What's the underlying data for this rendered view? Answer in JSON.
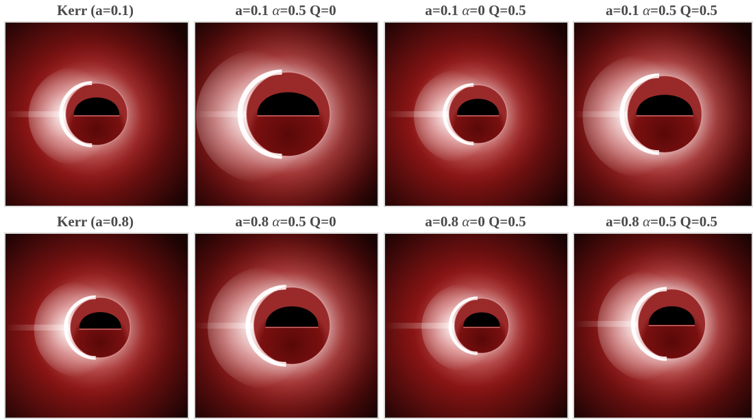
{
  "figure": {
    "rows": [
      {
        "panels": [
          {
            "title": "Kerr (a=0.1)"
          },
          {
            "title_parts": [
              "a=0.1 ",
              "α",
              "=0.5 Q=0"
            ]
          },
          {
            "title_parts": [
              "a=0.1 ",
              "α",
              "=0 Q=0.5"
            ]
          },
          {
            "title_parts": [
              "a=0.1 ",
              "α",
              "=0.5 Q=0.5"
            ]
          }
        ]
      },
      {
        "panels": [
          {
            "title": "Kerr (a=0.8)"
          },
          {
            "title_parts": [
              "a=0.8 ",
              "α",
              "=0.5 Q=0"
            ]
          },
          {
            "title_parts": [
              "a=0.8 ",
              "α",
              "=0 Q=0.5"
            ]
          },
          {
            "title_parts": [
              "a=0.8 ",
              "α",
              "=0.5 Q=0.5"
            ]
          }
        ]
      }
    ],
    "colors": {
      "accretion_glow": "#ffffff",
      "disk_red": "#8a1414",
      "background_dark": "#1a0303",
      "shadow": "#000000"
    }
  }
}
